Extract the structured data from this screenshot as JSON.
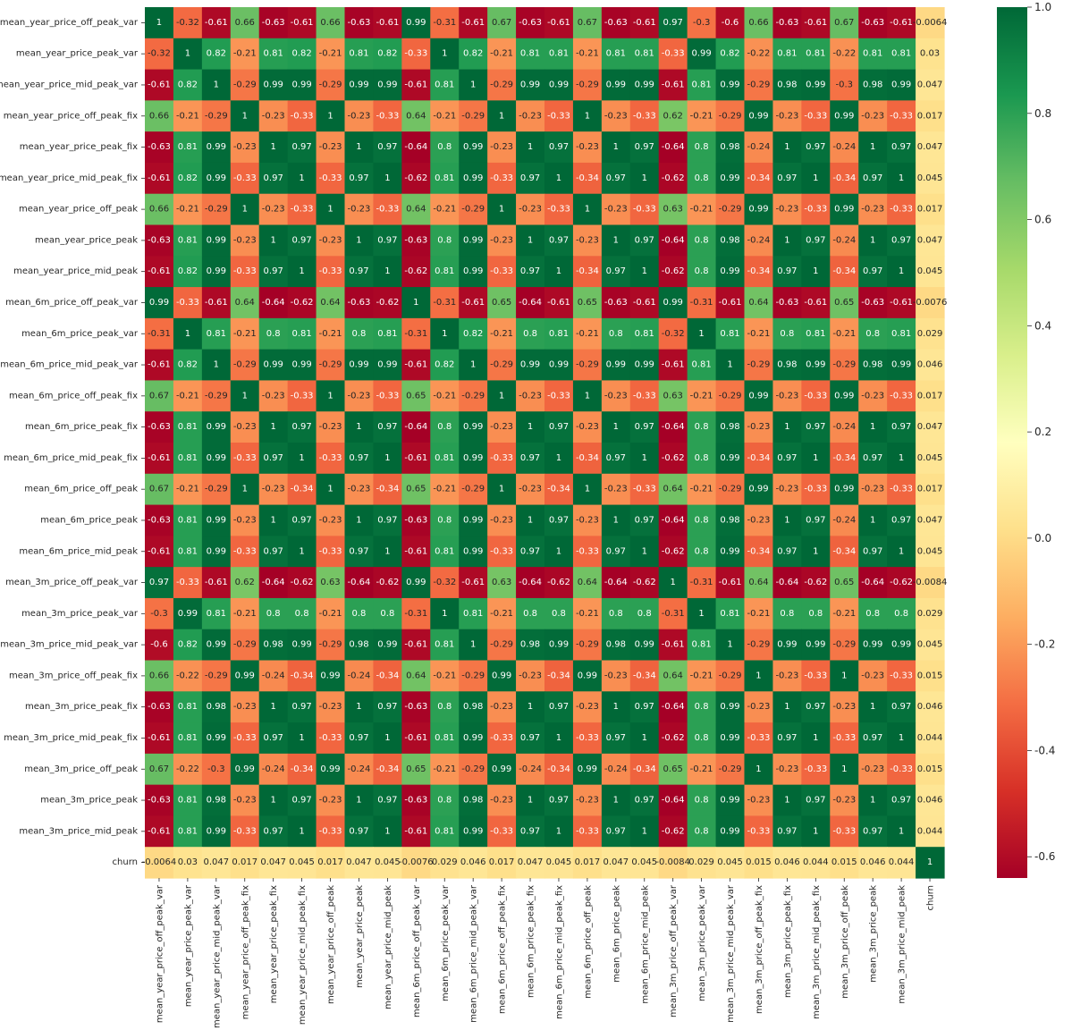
{
  "chart_data": {
    "type": "heatmap",
    "title": "",
    "labels": [
      "mean_year_price_off_peak_var",
      "mean_year_price_peak_var",
      "mean_year_price_mid_peak_var",
      "mean_year_price_off_peak_fix",
      "mean_year_price_peak_fix",
      "mean_year_price_mid_peak_fix",
      "mean_year_price_off_peak",
      "mean_year_price_peak",
      "mean_year_price_mid_peak",
      "mean_6m_price_off_peak_var",
      "mean_6m_price_peak_var",
      "mean_6m_price_mid_peak_var",
      "mean_6m_price_off_peak_fix",
      "mean_6m_price_peak_fix",
      "mean_6m_price_mid_peak_fix",
      "mean_6m_price_off_peak",
      "mean_6m_price_peak",
      "mean_6m_price_mid_peak",
      "mean_3m_price_off_peak_var",
      "mean_3m_price_peak_var",
      "mean_3m_price_mid_peak_var",
      "mean_3m_price_off_peak_fix",
      "mean_3m_price_peak_fix",
      "mean_3m_price_mid_peak_fix",
      "mean_3m_price_off_peak",
      "mean_3m_price_peak",
      "mean_3m_price_mid_peak",
      "churn"
    ],
    "values": [
      [
        1,
        -0.32,
        -0.61,
        0.66,
        -0.63,
        -0.61,
        0.66,
        -0.63,
        -0.61,
        0.99,
        -0.31,
        -0.61,
        0.67,
        -0.63,
        -0.61,
        0.67,
        -0.63,
        -0.61,
        0.97,
        -0.3,
        -0.6,
        0.66,
        -0.63,
        -0.61,
        0.67,
        -0.63,
        -0.61,
        -0.0064
      ],
      [
        -0.32,
        1,
        0.82,
        -0.21,
        0.81,
        0.82,
        -0.21,
        0.81,
        0.82,
        -0.33,
        1,
        0.82,
        -0.21,
        0.81,
        0.81,
        -0.21,
        0.81,
        0.81,
        -0.33,
        0.99,
        0.82,
        -0.22,
        0.81,
        0.81,
        -0.22,
        0.81,
        0.81,
        0.03
      ],
      [
        -0.61,
        0.82,
        1,
        -0.29,
        0.99,
        0.99,
        -0.29,
        0.99,
        0.99,
        -0.61,
        0.81,
        1,
        -0.29,
        0.99,
        0.99,
        -0.29,
        0.99,
        0.99,
        -0.61,
        0.81,
        0.99,
        -0.29,
        0.98,
        0.99,
        -0.3,
        0.98,
        0.99,
        0.047
      ],
      [
        0.66,
        -0.21,
        -0.29,
        1,
        -0.23,
        -0.33,
        1,
        -0.23,
        -0.33,
        0.64,
        -0.21,
        -0.29,
        1,
        -0.23,
        -0.33,
        1,
        -0.23,
        -0.33,
        0.62,
        -0.21,
        -0.29,
        0.99,
        -0.23,
        -0.33,
        0.99,
        -0.23,
        -0.33,
        0.017
      ],
      [
        -0.63,
        0.81,
        0.99,
        -0.23,
        1,
        0.97,
        -0.23,
        1,
        0.97,
        -0.64,
        0.8,
        0.99,
        -0.23,
        1,
        0.97,
        -0.23,
        1,
        0.97,
        -0.64,
        0.8,
        0.98,
        -0.24,
        1,
        0.97,
        -0.24,
        1,
        0.97,
        0.047
      ],
      [
        -0.61,
        0.82,
        0.99,
        -0.33,
        0.97,
        1,
        -0.33,
        0.97,
        1,
        -0.62,
        0.81,
        0.99,
        -0.33,
        0.97,
        1,
        -0.34,
        0.97,
        1,
        -0.62,
        0.8,
        0.99,
        -0.34,
        0.97,
        1,
        -0.34,
        0.97,
        1,
        0.045
      ],
      [
        0.66,
        -0.21,
        -0.29,
        1,
        -0.23,
        -0.33,
        1,
        -0.23,
        -0.33,
        0.64,
        -0.21,
        -0.29,
        1,
        -0.23,
        -0.33,
        1,
        -0.23,
        -0.33,
        0.63,
        -0.21,
        -0.29,
        0.99,
        -0.23,
        -0.33,
        0.99,
        -0.23,
        -0.33,
        0.017
      ],
      [
        -0.63,
        0.81,
        0.99,
        -0.23,
        1,
        0.97,
        -0.23,
        1,
        0.97,
        -0.63,
        0.8,
        0.99,
        -0.23,
        1,
        0.97,
        -0.23,
        1,
        0.97,
        -0.64,
        0.8,
        0.98,
        -0.24,
        1,
        0.97,
        -0.24,
        1,
        0.97,
        0.047
      ],
      [
        -0.61,
        0.82,
        0.99,
        -0.33,
        0.97,
        1,
        -0.33,
        0.97,
        1,
        -0.62,
        0.81,
        0.99,
        -0.33,
        0.97,
        1,
        -0.34,
        0.97,
        1,
        -0.62,
        0.8,
        0.99,
        -0.34,
        0.97,
        1,
        -0.34,
        0.97,
        1,
        0.045
      ],
      [
        0.99,
        -0.33,
        -0.61,
        0.64,
        -0.64,
        -0.62,
        0.64,
        -0.63,
        -0.62,
        1,
        -0.31,
        -0.61,
        0.65,
        -0.64,
        -0.61,
        0.65,
        -0.63,
        -0.61,
        0.99,
        -0.31,
        -0.61,
        0.64,
        -0.63,
        -0.61,
        0.65,
        -0.63,
        -0.61,
        -0.0076
      ],
      [
        -0.31,
        1,
        0.81,
        -0.21,
        0.8,
        0.81,
        -0.21,
        0.8,
        0.81,
        -0.31,
        1,
        0.82,
        -0.21,
        0.8,
        0.81,
        -0.21,
        0.8,
        0.81,
        -0.32,
        1,
        0.81,
        -0.21,
        0.8,
        0.81,
        -0.21,
        0.8,
        0.81,
        0.029
      ],
      [
        -0.61,
        0.82,
        1,
        -0.29,
        0.99,
        0.99,
        -0.29,
        0.99,
        0.99,
        -0.61,
        0.82,
        1,
        -0.29,
        0.99,
        0.99,
        -0.29,
        0.99,
        0.99,
        -0.61,
        0.81,
        1,
        -0.29,
        0.98,
        0.99,
        -0.29,
        0.98,
        0.99,
        0.046
      ],
      [
        0.67,
        -0.21,
        -0.29,
        1,
        -0.23,
        -0.33,
        1,
        -0.23,
        -0.33,
        0.65,
        -0.21,
        -0.29,
        1,
        -0.23,
        -0.33,
        1,
        -0.23,
        -0.33,
        0.63,
        -0.21,
        -0.29,
        0.99,
        -0.23,
        -0.33,
        0.99,
        -0.23,
        -0.33,
        0.017
      ],
      [
        -0.63,
        0.81,
        0.99,
        -0.23,
        1,
        0.97,
        -0.23,
        1,
        0.97,
        -0.64,
        0.8,
        0.99,
        -0.23,
        1,
        0.97,
        -0.23,
        1,
        0.97,
        -0.64,
        0.8,
        0.98,
        -0.23,
        1,
        0.97,
        -0.24,
        1,
        0.97,
        0.047
      ],
      [
        -0.61,
        0.81,
        0.99,
        -0.33,
        0.97,
        1,
        -0.33,
        0.97,
        1,
        -0.61,
        0.81,
        0.99,
        -0.33,
        0.97,
        1,
        -0.34,
        0.97,
        1,
        -0.62,
        0.8,
        0.99,
        -0.34,
        0.97,
        1,
        -0.34,
        0.97,
        1,
        0.045
      ],
      [
        0.67,
        -0.21,
        -0.29,
        1,
        -0.23,
        -0.34,
        1,
        -0.23,
        -0.34,
        0.65,
        -0.21,
        -0.29,
        1,
        -0.23,
        -0.34,
        1,
        -0.23,
        -0.33,
        0.64,
        -0.21,
        -0.29,
        0.99,
        -0.23,
        -0.33,
        0.99,
        -0.23,
        -0.33,
        0.017
      ],
      [
        -0.63,
        0.81,
        0.99,
        -0.23,
        1,
        0.97,
        -0.23,
        1,
        0.97,
        -0.63,
        0.8,
        0.99,
        -0.23,
        1,
        0.97,
        -0.23,
        1,
        0.97,
        -0.64,
        0.8,
        0.98,
        -0.23,
        1,
        0.97,
        -0.24,
        1,
        0.97,
        0.047
      ],
      [
        -0.61,
        0.81,
        0.99,
        -0.33,
        0.97,
        1,
        -0.33,
        0.97,
        1,
        -0.61,
        0.81,
        0.99,
        -0.33,
        0.97,
        1,
        -0.33,
        0.97,
        1,
        -0.62,
        0.8,
        0.99,
        -0.34,
        0.97,
        1,
        -0.34,
        0.97,
        1,
        0.045
      ],
      [
        0.97,
        -0.33,
        -0.61,
        0.62,
        -0.64,
        -0.62,
        0.63,
        -0.64,
        -0.62,
        0.99,
        -0.32,
        -0.61,
        0.63,
        -0.64,
        -0.62,
        0.64,
        -0.64,
        -0.62,
        1,
        -0.31,
        -0.61,
        0.64,
        -0.64,
        -0.62,
        0.65,
        -0.64,
        -0.62,
        -0.0084
      ],
      [
        -0.3,
        0.99,
        0.81,
        -0.21,
        0.8,
        0.8,
        -0.21,
        0.8,
        0.8,
        -0.31,
        1,
        0.81,
        -0.21,
        0.8,
        0.8,
        -0.21,
        0.8,
        0.8,
        -0.31,
        1,
        0.81,
        -0.21,
        0.8,
        0.8,
        -0.21,
        0.8,
        0.8,
        0.029
      ],
      [
        -0.6,
        0.82,
        0.99,
        -0.29,
        0.98,
        0.99,
        -0.29,
        0.98,
        0.99,
        -0.61,
        0.81,
        1,
        -0.29,
        0.98,
        0.99,
        -0.29,
        0.98,
        0.99,
        -0.61,
        0.81,
        1,
        -0.29,
        0.99,
        0.99,
        -0.29,
        0.99,
        0.99,
        0.045
      ],
      [
        0.66,
        -0.22,
        -0.29,
        0.99,
        -0.24,
        -0.34,
        0.99,
        -0.24,
        -0.34,
        0.64,
        -0.21,
        -0.29,
        0.99,
        -0.23,
        -0.34,
        0.99,
        -0.23,
        -0.34,
        0.64,
        -0.21,
        -0.29,
        1,
        -0.23,
        -0.33,
        1,
        -0.23,
        -0.33,
        0.015
      ],
      [
        -0.63,
        0.81,
        0.98,
        -0.23,
        1,
        0.97,
        -0.23,
        1,
        0.97,
        -0.63,
        0.8,
        0.98,
        -0.23,
        1,
        0.97,
        -0.23,
        1,
        0.97,
        -0.64,
        0.8,
        0.99,
        -0.23,
        1,
        0.97,
        -0.23,
        1,
        0.97,
        0.046
      ],
      [
        -0.61,
        0.81,
        0.99,
        -0.33,
        0.97,
        1,
        -0.33,
        0.97,
        1,
        -0.61,
        0.81,
        0.99,
        -0.33,
        0.97,
        1,
        -0.33,
        0.97,
        1,
        -0.62,
        0.8,
        0.99,
        -0.33,
        0.97,
        1,
        -0.33,
        0.97,
        1,
        0.044
      ],
      [
        0.67,
        -0.22,
        -0.3,
        0.99,
        -0.24,
        -0.34,
        0.99,
        -0.24,
        -0.34,
        0.65,
        -0.21,
        -0.29,
        0.99,
        -0.24,
        -0.34,
        0.99,
        -0.24,
        -0.34,
        0.65,
        -0.21,
        -0.29,
        1,
        -0.23,
        -0.33,
        1,
        -0.23,
        -0.33,
        0.015
      ],
      [
        -0.63,
        0.81,
        0.98,
        -0.23,
        1,
        0.97,
        -0.23,
        1,
        0.97,
        -0.63,
        0.8,
        0.98,
        -0.23,
        1,
        0.97,
        -0.23,
        1,
        0.97,
        -0.64,
        0.8,
        0.99,
        -0.23,
        1,
        0.97,
        -0.23,
        1,
        0.97,
        0.046
      ],
      [
        -0.61,
        0.81,
        0.99,
        -0.33,
        0.97,
        1,
        -0.33,
        0.97,
        1,
        -0.61,
        0.81,
        0.99,
        -0.33,
        0.97,
        1,
        -0.33,
        0.97,
        1,
        -0.62,
        0.8,
        0.99,
        -0.33,
        0.97,
        1,
        -0.33,
        0.97,
        1,
        0.044
      ],
      [
        -0.0064,
        0.03,
        0.047,
        0.017,
        0.047,
        0.045,
        0.017,
        0.047,
        0.045,
        -0.0076,
        0.029,
        0.046,
        0.017,
        0.047,
        0.045,
        0.017,
        0.047,
        0.045,
        -0.0084,
        0.029,
        0.045,
        0.015,
        0.046,
        0.044,
        0.015,
        0.046,
        0.044,
        1
      ]
    ],
    "colormap": "RdYlGn",
    "vmin": -0.64,
    "vmax": 1,
    "colorbar_ticks": [
      "1.0",
      "0.8",
      "0.6",
      "0.4",
      "0.2",
      "0.0",
      "-0.2",
      "-0.4",
      "-0.6"
    ],
    "colorbar_tick_values": [
      1.0,
      0.8,
      0.6,
      0.4,
      0.2,
      0.0,
      -0.2,
      -0.4,
      -0.6
    ],
    "annotations": true,
    "grid": false
  }
}
